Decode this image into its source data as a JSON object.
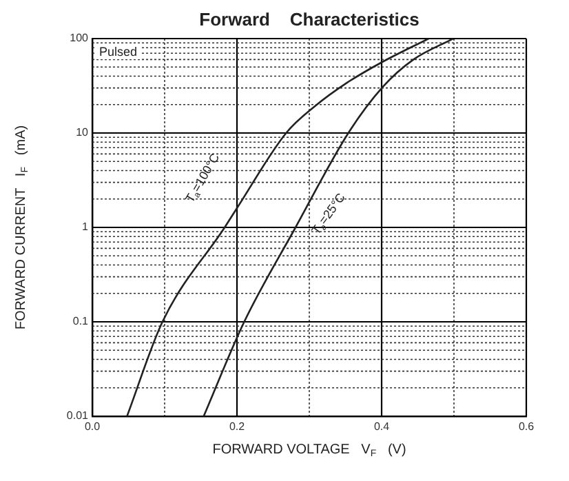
{
  "chart_data": {
    "type": "line",
    "title": "Forward    Characteristics",
    "xlabel": "FORWARD VOLTAGE   V$_{F}$   (V)",
    "ylabel": "FORWARD CURRENT   I$_{F}$   (mA)",
    "series": [
      {
        "color": "#222222",
        "x": [
          0.048,
          0.097,
          0.183,
          0.2,
          0.268,
          0.307,
          0.352,
          0.4,
          0.465
        ],
        "values": [
          0.01,
          0.1,
          1,
          1.6,
          10,
          19,
          34,
          56,
          100
        ]
      },
      {
        "color": "#222222",
        "x": [
          0.154,
          0.21,
          0.281,
          0.354,
          0.402,
          0.444,
          0.499
        ],
        "values": [
          0.01,
          0.1,
          1,
          10,
          31,
          60,
          100
        ]
      }
    ],
    "annotations": [
      "Pulsed",
      "T$_{a}$=100°C",
      "T$_{a}$=25°C"
    ],
    "xlim": [
      0,
      0.6
    ],
    "xticks": [
      {
        "value": 0,
        "label": "0.0"
      },
      {
        "value": 0.1,
        "label": null
      },
      {
        "value": 0.2,
        "label": "0.2"
      },
      {
        "value": 0.3,
        "label": null
      },
      {
        "value": 0.4,
        "label": "0.4"
      },
      {
        "value": 0.5,
        "label": null
      },
      {
        "value": 0.6,
        "label": "0.6"
      }
    ],
    "ylim": [
      0.01,
      100
    ],
    "yticks": [
      0.01,
      {
        "value": 0.02,
        "label": null
      },
      {
        "value": 0.03,
        "label": null
      },
      {
        "value": 0.04,
        "label": null
      },
      {
        "value": 0.05,
        "label": null
      },
      {
        "value": 0.06,
        "label": null
      },
      {
        "value": 0.07,
        "label": null
      },
      {
        "value": 0.08,
        "label": null
      },
      {
        "value": 0.09,
        "label": null
      },
      0.1,
      {
        "value": 0.2,
        "label": null
      },
      {
        "value": 0.3,
        "label": null
      },
      {
        "value": 0.4,
        "label": null
      },
      {
        "value": 0.5,
        "label": null
      },
      {
        "value": 0.6,
        "label": null
      },
      {
        "value": 0.7,
        "label": null
      },
      {
        "value": 0.8,
        "label": null
      },
      {
        "value": 0.9,
        "label": null
      },
      1,
      {
        "value": 2,
        "label": null
      },
      {
        "value": 3,
        "label": null
      },
      {
        "value": 4,
        "label": null
      },
      {
        "value": 5,
        "label": null
      },
      {
        "value": 6,
        "label": null
      },
      {
        "value": 7,
        "label": null
      },
      {
        "value": 8,
        "label": null
      },
      {
        "value": 9,
        "label": null
      },
      10,
      {
        "value": 20,
        "label": null
      },
      {
        "value": 30,
        "label": null
      },
      {
        "value": 40,
        "label": null
      },
      {
        "value": 50,
        "label": null
      },
      {
        "value": 60,
        "label": null
      },
      {
        "value": 70,
        "label": null
      },
      {
        "value": 80,
        "label": null
      },
      {
        "value": 90,
        "label": null
      },
      100
    ],
    "log": "y",
    "grid": true,
    "legend": false,
    "marker": "none",
    "line_style": "solid"
  }
}
